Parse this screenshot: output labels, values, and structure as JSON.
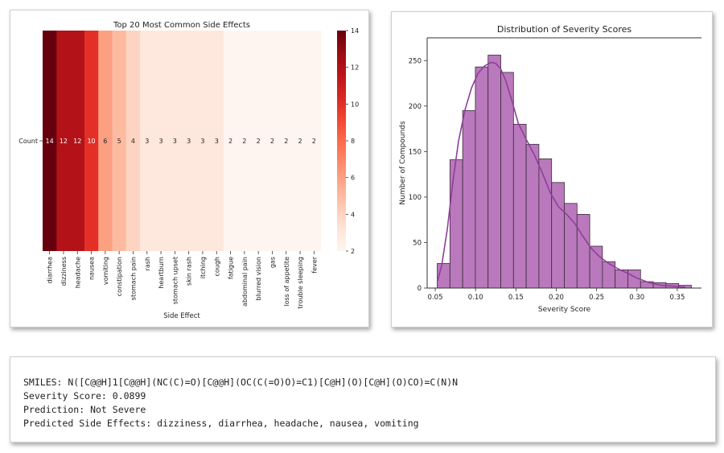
{
  "chart_data": [
    {
      "type": "heatmap",
      "title": "Top 20 Most Common Side Effects",
      "xlabel": "Side Effect",
      "ylabel": "",
      "row_labels": [
        "Count"
      ],
      "categories": [
        "diarrhea",
        "dizziness",
        "headache",
        "nausea",
        "vomiting",
        "constipation",
        "stomach pain",
        "rash",
        "heartburn",
        "stomach upset",
        "skin rash",
        "itching",
        "cough",
        "fatigue",
        "abdominal pain",
        "blurred vision",
        "gas",
        "loss of appetite",
        "trouble sleeping",
        "fever"
      ],
      "values": [
        14,
        12,
        12,
        10,
        6,
        5,
        4,
        3,
        3,
        3,
        3,
        3,
        3,
        2,
        2,
        2,
        2,
        2,
        2,
        2
      ],
      "cell_labels": [
        "14",
        "12",
        "12",
        "10",
        "6",
        "5",
        "4",
        "3",
        "3",
        "3",
        "3",
        "3",
        "3",
        "2",
        "2",
        "2",
        "2",
        "2",
        "2",
        "2"
      ],
      "colorbar": {
        "min": 2,
        "max": 14,
        "ticks": [
          "2",
          "4",
          "6",
          "8",
          "10",
          "12",
          "14"
        ],
        "colormap": "Reds"
      }
    },
    {
      "type": "histogram",
      "title": "Distribution of Severity Scores",
      "xlabel": "Severity Score",
      "ylabel": "Number of Compounds",
      "bin_start": 0.0525,
      "bin_width": 0.01575,
      "counts": [
        27,
        141,
        195,
        243,
        256,
        237,
        180,
        158,
        142,
        116,
        93,
        81,
        46,
        29,
        20,
        20,
        7,
        6,
        5,
        3
      ],
      "kde": [
        [
          0.053,
          8
        ],
        [
          0.058,
          25
        ],
        [
          0.065,
          65
        ],
        [
          0.072,
          118
        ],
        [
          0.079,
          162
        ],
        [
          0.087,
          196
        ],
        [
          0.095,
          220
        ],
        [
          0.103,
          236
        ],
        [
          0.111,
          244
        ],
        [
          0.119,
          248
        ],
        [
          0.125,
          247
        ],
        [
          0.131,
          241
        ],
        [
          0.137,
          229
        ],
        [
          0.145,
          206
        ],
        [
          0.153,
          181
        ],
        [
          0.163,
          163
        ],
        [
          0.173,
          146
        ],
        [
          0.183,
          126
        ],
        [
          0.193,
          104
        ],
        [
          0.203,
          89
        ],
        [
          0.213,
          81
        ],
        [
          0.223,
          71
        ],
        [
          0.233,
          57
        ],
        [
          0.243,
          44
        ],
        [
          0.253,
          35
        ],
        [
          0.265,
          27
        ],
        [
          0.277,
          21
        ],
        [
          0.289,
          16
        ],
        [
          0.3,
          11
        ],
        [
          0.315,
          6
        ],
        [
          0.33,
          3
        ],
        [
          0.345,
          2
        ],
        [
          0.36,
          1
        ]
      ],
      "xlim": [
        0.04,
        0.38
      ],
      "ylim": [
        0,
        275
      ],
      "xticks": [
        "0.05",
        "0.10",
        "0.15",
        "0.20",
        "0.25",
        "0.30",
        "0.35"
      ],
      "yticks": [
        "0",
        "50",
        "100",
        "150",
        "200",
        "250"
      ],
      "bar_color": "#b979bc",
      "line_color": "#8e3f99"
    }
  ],
  "output": {
    "smiles_line": "SMILES: N([C@@H]1[C@@H](NC(C)=O)[C@@H](OC(C(=O)O)=C1)[C@H](O)[C@H](O)CO)=C(N)N",
    "severity_line": "Severity Score: 0.0899",
    "prediction_line": "Prediction: Not Severe",
    "side_effects_line": "Predicted Side Effects: dizziness, diarrhea, headache, nausea, vomiting"
  }
}
